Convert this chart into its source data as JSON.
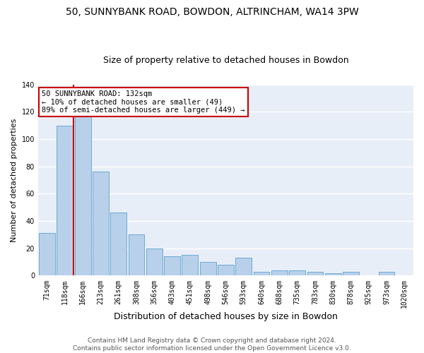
{
  "title": "50, SUNNYBANK ROAD, BOWDON, ALTRINCHAM, WA14 3PW",
  "subtitle": "Size of property relative to detached houses in Bowdon",
  "xlabel": "Distribution of detached houses by size in Bowdon",
  "ylabel": "Number of detached properties",
  "categories": [
    "71sqm",
    "118sqm",
    "166sqm",
    "213sqm",
    "261sqm",
    "308sqm",
    "356sqm",
    "403sqm",
    "451sqm",
    "498sqm",
    "546sqm",
    "593sqm",
    "640sqm",
    "688sqm",
    "735sqm",
    "783sqm",
    "830sqm",
    "878sqm",
    "925sqm",
    "973sqm",
    "1020sqm"
  ],
  "values": [
    31,
    110,
    118,
    76,
    46,
    30,
    20,
    14,
    15,
    10,
    8,
    13,
    3,
    4,
    4,
    3,
    2,
    3,
    0,
    3,
    0
  ],
  "bar_color": "#b8d0ea",
  "bar_edge_color": "#6aaad4",
  "background_color": "#e8eef8",
  "grid_color": "#ffffff",
  "annotation_text": "50 SUNNYBANK ROAD: 132sqm\n← 10% of detached houses are smaller (49)\n89% of semi-detached houses are larger (449) →",
  "annotation_box_color": "#ffffff",
  "annotation_box_edge": "#cc0000",
  "vline_color": "#cc0000",
  "vline_x": 1.5,
  "ylim": [
    0,
    140
  ],
  "yticks": [
    0,
    20,
    40,
    60,
    80,
    100,
    120,
    140
  ],
  "footer": "Contains HM Land Registry data © Crown copyright and database right 2024.\nContains public sector information licensed under the Open Government Licence v3.0.",
  "title_fontsize": 10,
  "subtitle_fontsize": 9,
  "xlabel_fontsize": 9,
  "ylabel_fontsize": 8,
  "tick_fontsize": 7,
  "footer_fontsize": 6.5,
  "annot_fontsize": 7.5
}
